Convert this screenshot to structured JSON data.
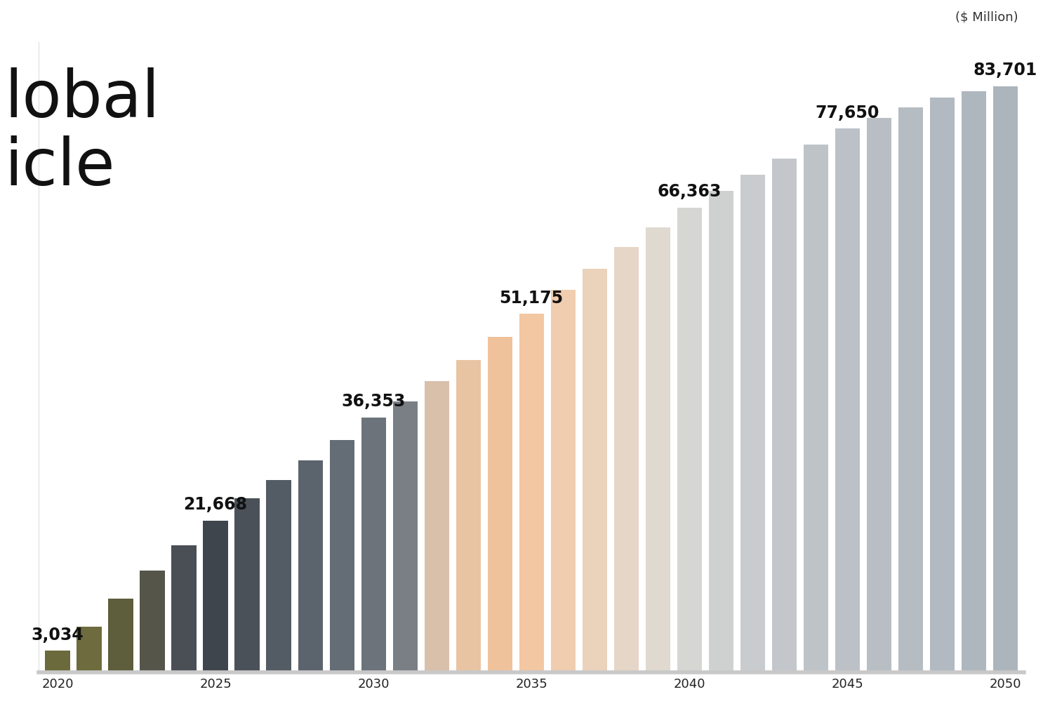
{
  "chart_data": {
    "type": "bar",
    "title": "lobal\nicle",
    "subtitle": "($ Million)",
    "x": [
      2020,
      2021,
      2022,
      2023,
      2024,
      2025,
      2026,
      2027,
      2028,
      2029,
      2030,
      2031,
      2032,
      2033,
      2034,
      2035,
      2036,
      2037,
      2038,
      2039,
      2040,
      2041,
      2042,
      2043,
      2044,
      2045,
      2046,
      2047,
      2048,
      2049,
      2050
    ],
    "values": [
      3034,
      6500,
      10500,
      14500,
      18100,
      21668,
      24850,
      27450,
      30250,
      33150,
      36353,
      38650,
      41550,
      44600,
      47900,
      51175,
      54600,
      57600,
      60700,
      63600,
      66363,
      68750,
      71050,
      73350,
      75350,
      77650,
      79250,
      80750,
      82150,
      83050,
      83701
    ],
    "value_labels": [
      "3,034",
      null,
      null,
      null,
      null,
      "21,668",
      null,
      null,
      null,
      null,
      "36,353",
      null,
      null,
      null,
      null,
      "51,175",
      null,
      null,
      null,
      null,
      "66,363",
      null,
      null,
      null,
      null,
      "77,650",
      null,
      null,
      null,
      null,
      "83,701"
    ],
    "data_labels": true,
    "colors": [
      "#6b6a3c",
      "#6e6b3e",
      "#5e5d3c",
      "#55554a",
      "#4a4e55",
      "#3f454d",
      "#4a5159",
      "#535b64",
      "#5b636c",
      "#646c75",
      "#6c737b",
      "#7a7f86",
      "#d9c0aa",
      "#e9c4a3",
      "#efc29c",
      "#f2c7a2",
      "#f0cdaf",
      "#ebd2bb",
      "#e6d6c7",
      "#dfd9d0",
      "#d6d6d2",
      "#cfd1d1",
      "#c9cccf",
      "#c3c7cb",
      "#bec3c8",
      "#bbc1c6",
      "#b8bec4",
      "#b5bcc2",
      "#b2b9c0",
      "#afb7be",
      "#adb5bc"
    ],
    "xlim": [
      2019.4,
      2050.6
    ],
    "xticks": [
      2020,
      2025,
      2030,
      2035,
      2040,
      2045,
      2050
    ],
    "ylim": [
      0,
      90000
    ],
    "yticks": [],
    "tick_labels": "x",
    "grid": false
  }
}
